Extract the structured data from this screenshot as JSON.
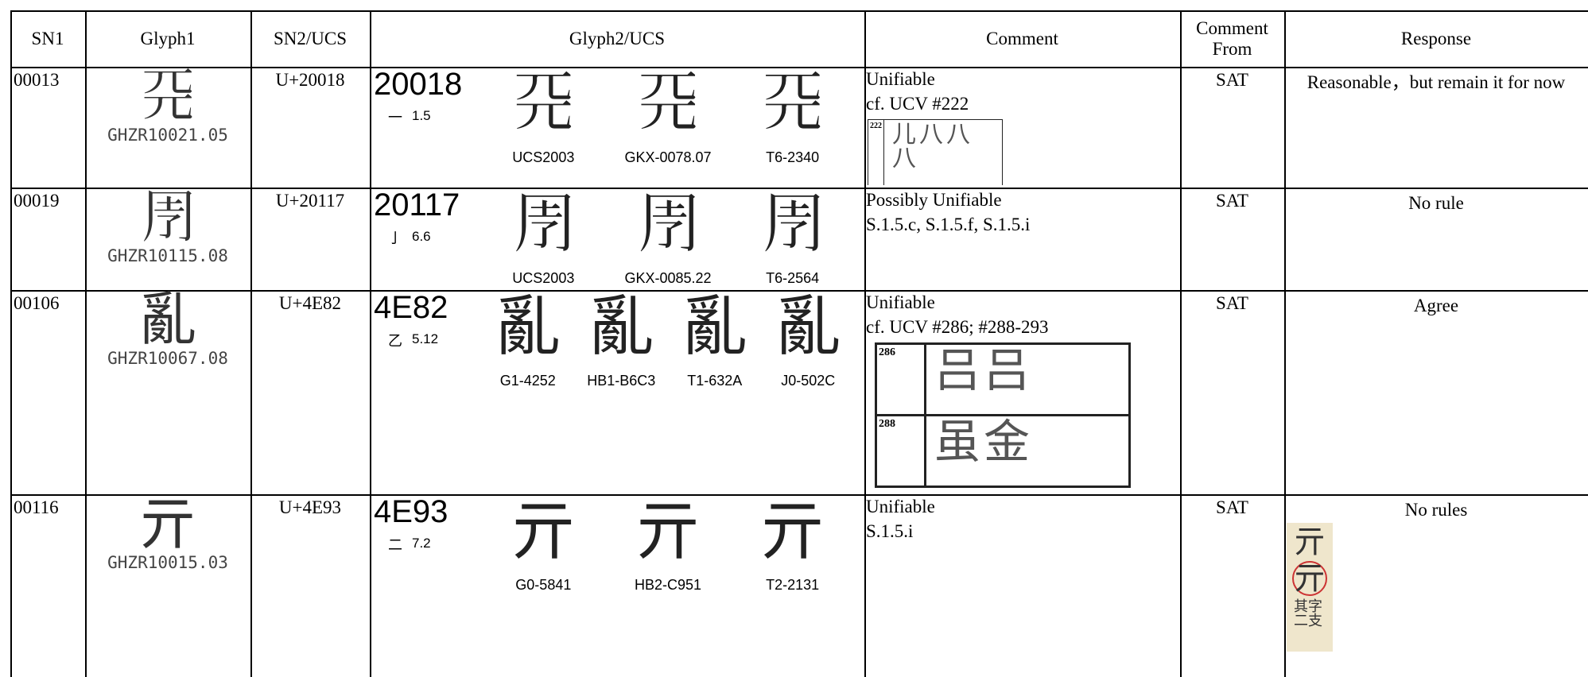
{
  "header": [
    "SN1",
    "Glyph1",
    "SN2/UCS",
    "Glyph2/UCS",
    "Comment",
    "Comment From",
    "Response"
  ],
  "rows": [
    {
      "sn1": "00013",
      "glyph1": {
        "char": "𠀘",
        "code": "GHZR10021.05"
      },
      "sn2": "U+20018",
      "glyph2": {
        "code": "20018",
        "radical": "一",
        "strokes": "1.5",
        "glyphs": [
          {
            "char": "𠀘",
            "label": "UCS2003"
          },
          {
            "char": "𠀘",
            "label": "GKX-0078.07"
          },
          {
            "char": "𠀘",
            "label": "T6-2340"
          }
        ]
      },
      "comment": {
        "lines": [
          "Unifiable",
          "cf. UCV #222"
        ],
        "ucv": [
          {
            "num": "222",
            "lines": [
              "儿八八",
              "八"
            ]
          }
        ]
      },
      "comment_from": "SAT",
      "response": "Reasonable，but remain it for now"
    },
    {
      "sn1": "00019",
      "glyph1": {
        "char": "𠄗",
        "code": "GHZR10115.08"
      },
      "sn2": "U+20117",
      "glyph2": {
        "code": "20117",
        "radical": "亅",
        "strokes": "6.6",
        "glyphs": [
          {
            "char": "𠄗",
            "label": "UCS2003"
          },
          {
            "char": "𠄗",
            "label": "GKX-0085.22"
          },
          {
            "char": "𠄗",
            "label": "T6-2564"
          }
        ]
      },
      "comment": {
        "lines": [
          "Possibly Unifiable",
          "S.1.5.c, S.1.5.f, S.1.5.i"
        ],
        "ucv": []
      },
      "comment_from": "SAT",
      "response": "No rule"
    },
    {
      "sn1": "00106",
      "glyph1": {
        "char": "亂",
        "code": "GHZR10067.08"
      },
      "sn2": "U+4E82",
      "glyph2": {
        "code": "4E82",
        "radical": "乙",
        "strokes": "5.12",
        "glyphs": [
          {
            "char": "亂",
            "label": "G1-4252"
          },
          {
            "char": "亂",
            "label": "HB1-B6C3"
          },
          {
            "char": "亂",
            "label": "T1-632A"
          },
          {
            "char": "亂",
            "label": "J0-502C"
          }
        ]
      },
      "comment": {
        "lines": [
          "Unifiable",
          "cf. UCV #286; #288-293"
        ],
        "ucv": [
          {
            "num": "286",
            "lines": [
              "吕吕"
            ]
          },
          {
            "num": "288",
            "lines": [
              "虽金"
            ]
          }
        ]
      },
      "comment_from": "SAT",
      "response": "Agree"
    },
    {
      "sn1": "00116",
      "glyph1": {
        "char": "亓",
        "code": "GHZR10015.03"
      },
      "sn2": "U+4E93",
      "glyph2": {
        "code": "4E93",
        "radical": "二",
        "strokes": "7.2",
        "glyphs": [
          {
            "char": "亓",
            "label": "G0-5841"
          },
          {
            "char": "亓",
            "label": "HB2-C951"
          },
          {
            "char": "亓",
            "label": "T2-2131"
          }
        ]
      },
      "comment": {
        "lines": [
          "Unifiable",
          "S.1.5.i"
        ],
        "ucv": []
      },
      "comment_from": "SAT",
      "response": "No rules",
      "response_image": [
        "亓",
        "亓",
        "其字二支"
      ]
    }
  ]
}
